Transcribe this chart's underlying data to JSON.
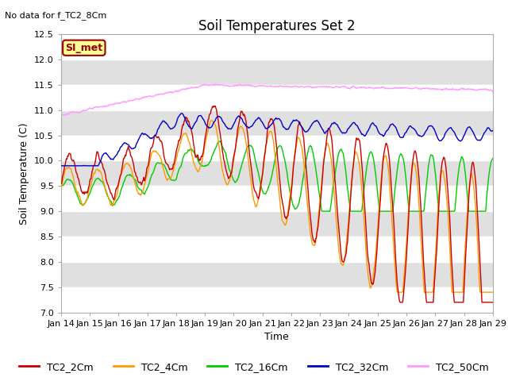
{
  "title": "Soil Temperatures Set 2",
  "xlabel": "Time",
  "ylabel": "Soil Temperature (C)",
  "no_data_text": "No data for f_TC2_8Cm",
  "si_met_label": "SI_met",
  "ylim": [
    7.0,
    12.5
  ],
  "yticks": [
    7.0,
    7.5,
    8.0,
    8.5,
    9.0,
    9.5,
    10.0,
    10.5,
    11.0,
    11.5,
    12.0,
    12.5
  ],
  "xtick_labels": [
    "Jan 14",
    "Jan 15",
    "Jan 16",
    "Jan 17",
    "Jan 18",
    "Jan 19",
    "Jan 20",
    "Jan 21",
    "Jan 22",
    "Jan 23",
    "Jan 24",
    "Jan 25",
    "Jan 26",
    "Jan 27",
    "Jan 28",
    "Jan 29"
  ],
  "line_colors": {
    "TC2_2Cm": "#cc0000",
    "TC2_4Cm": "#ff9900",
    "TC2_16Cm": "#00cc00",
    "TC2_32Cm": "#0000cc",
    "TC2_50Cm": "#ff99ff"
  },
  "legend_labels": [
    "TC2_2Cm",
    "TC2_4Cm",
    "TC2_16Cm",
    "TC2_32Cm",
    "TC2_50Cm"
  ],
  "background_color": "#ffffff",
  "plot_bg_color": "#e0e0e0",
  "band_color": "#ffffff",
  "grid_color": "#ffffff",
  "si_met_bg": "#ffff99",
  "si_met_border": "#990000",
  "title_fontsize": 12,
  "label_fontsize": 9,
  "tick_fontsize": 8,
  "legend_fontsize": 9,
  "n_points": 720
}
